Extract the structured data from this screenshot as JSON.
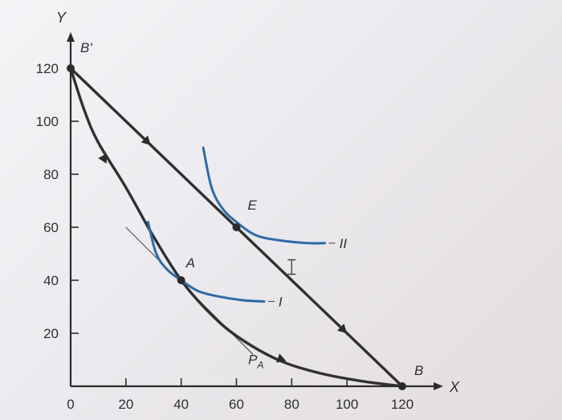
{
  "chart_data": {
    "type": "line",
    "xlabel": "X",
    "ylabel": "Y",
    "xlim": [
      0,
      120
    ],
    "ylim": [
      0,
      120
    ],
    "x_ticks": [
      "0",
      "20",
      "40",
      "60",
      "80",
      "100",
      "120"
    ],
    "y_ticks": [
      "20",
      "40",
      "60",
      "80",
      "100",
      "120"
    ],
    "colors": {
      "budget": "#303030",
      "indifference": "#2d6aa6",
      "tangent": "#555555"
    },
    "series": [
      {
        "x": [
          0,
          120
        ],
        "y": [
          120,
          0
        ]
      },
      {
        "x": [
          0,
          5,
          10,
          20,
          30,
          40,
          50,
          60,
          75,
          90,
          105,
          120
        ],
        "y": [
          120,
          104,
          92,
          75,
          56.5,
          40,
          28,
          19,
          10,
          5,
          2,
          0
        ]
      }
    ],
    "indifference_curves": [
      {
        "label": "I",
        "x": [
          28,
          31,
          35,
          40,
          46,
          53,
          62,
          70
        ],
        "y": [
          62,
          50,
          44,
          40,
          36,
          34,
          32.5,
          32
        ]
      },
      {
        "label": "II",
        "x": [
          48,
          51,
          55,
          60,
          67,
          76,
          86,
          92
        ],
        "y": [
          90,
          75,
          67,
          62,
          57,
          55,
          54,
          54
        ]
      }
    ],
    "tangent_line": {
      "label": "P_A",
      "from": [
        20,
        60
      ],
      "to": [
        66,
        12
      ]
    },
    "points": [
      {
        "label": "A",
        "x": 40,
        "y": 40
      },
      {
        "label": "E",
        "x": 60,
        "y": 60
      },
      {
        "label": "B'",
        "x": 0,
        "y": 120
      },
      {
        "label": "B",
        "x": 120,
        "y": 0
      }
    ],
    "annotations": [
      "B'",
      "B",
      "A",
      "E",
      "P_A",
      "I",
      "II"
    ]
  }
}
